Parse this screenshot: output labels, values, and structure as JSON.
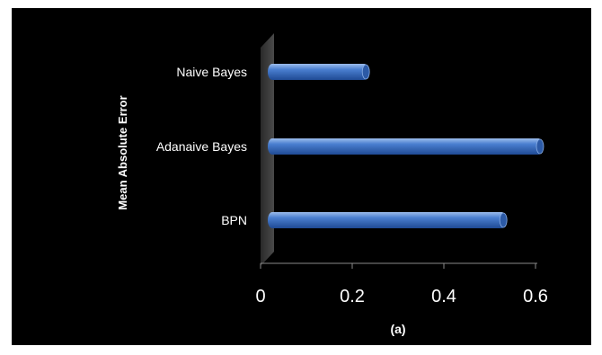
{
  "chart_data": {
    "type": "bar",
    "orientation": "horizontal",
    "categories": [
      "Naive Bayes",
      "Adanaive Bayes",
      "BPN"
    ],
    "values": [
      0.22,
      0.6,
      0.52
    ],
    "ylabel": "Mean Absolute Error",
    "xlabel": "(a)",
    "xlim": [
      0,
      0.6
    ],
    "xticks": [
      "0",
      "0.2",
      "0.4",
      "0.6"
    ],
    "grid": false,
    "legend": "none",
    "bar_color": "#3d72c4",
    "background": "#000000"
  }
}
